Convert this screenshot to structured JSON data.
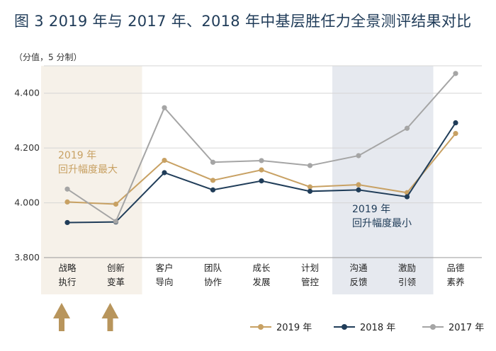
{
  "title": "图 3  2019 年与 2017 年、2018 年中基层胜任力全景测评结果对比",
  "unit_label": "（分值，5 分制）",
  "colors": {
    "s2019": "#c8a163",
    "s2018": "#203d59",
    "s2017": "#a5a5a5",
    "band_beige": "#f6f1e9",
    "band_blue": "#e6e9ef",
    "arrow": "#b8955c",
    "grid": "#d6d6d6"
  },
  "annotations": {
    "max_line1": "2019 年",
    "max_line2": "回升幅度最大",
    "min_line1": "2019 年",
    "min_line2": "回升幅度最小"
  },
  "icons": [
    "up-arrow-icon",
    "up-arrow-icon"
  ],
  "chart_data": {
    "type": "line",
    "categories": [
      [
        "战略",
        "执行"
      ],
      [
        "创新",
        "变革"
      ],
      [
        "客户",
        "导向"
      ],
      [
        "团队",
        "协作"
      ],
      [
        "成长",
        "发展"
      ],
      [
        "计划",
        "管控"
      ],
      [
        "沟通",
        "反馈"
      ],
      [
        "激励",
        "引领"
      ],
      [
        "品德",
        "素养"
      ]
    ],
    "series": [
      {
        "name": "2019 年",
        "color_key": "s2019",
        "values": [
          4.003,
          3.995,
          4.155,
          4.082,
          4.12,
          4.058,
          4.066,
          4.037,
          4.253
        ]
      },
      {
        "name": "2018 年",
        "color_key": "s2018",
        "values": [
          3.928,
          3.93,
          4.11,
          4.047,
          4.08,
          4.042,
          4.047,
          4.022,
          4.292
        ]
      },
      {
        "name": "2017 年",
        "color_key": "s2017",
        "values": [
          4.05,
          3.932,
          4.347,
          4.148,
          4.154,
          4.136,
          4.172,
          4.272,
          4.472
        ]
      }
    ],
    "ylim": [
      3.8,
      4.5
    ],
    "yticks": [
      "4.400",
      "4.200",
      "4.000",
      "3.800"
    ],
    "ytick_values": [
      4.4,
      4.2,
      4.0,
      3.8
    ],
    "highlight_max_range": [
      0,
      1
    ],
    "highlight_min_range": [
      6,
      7
    ],
    "legend_position": "bottom-right"
  }
}
